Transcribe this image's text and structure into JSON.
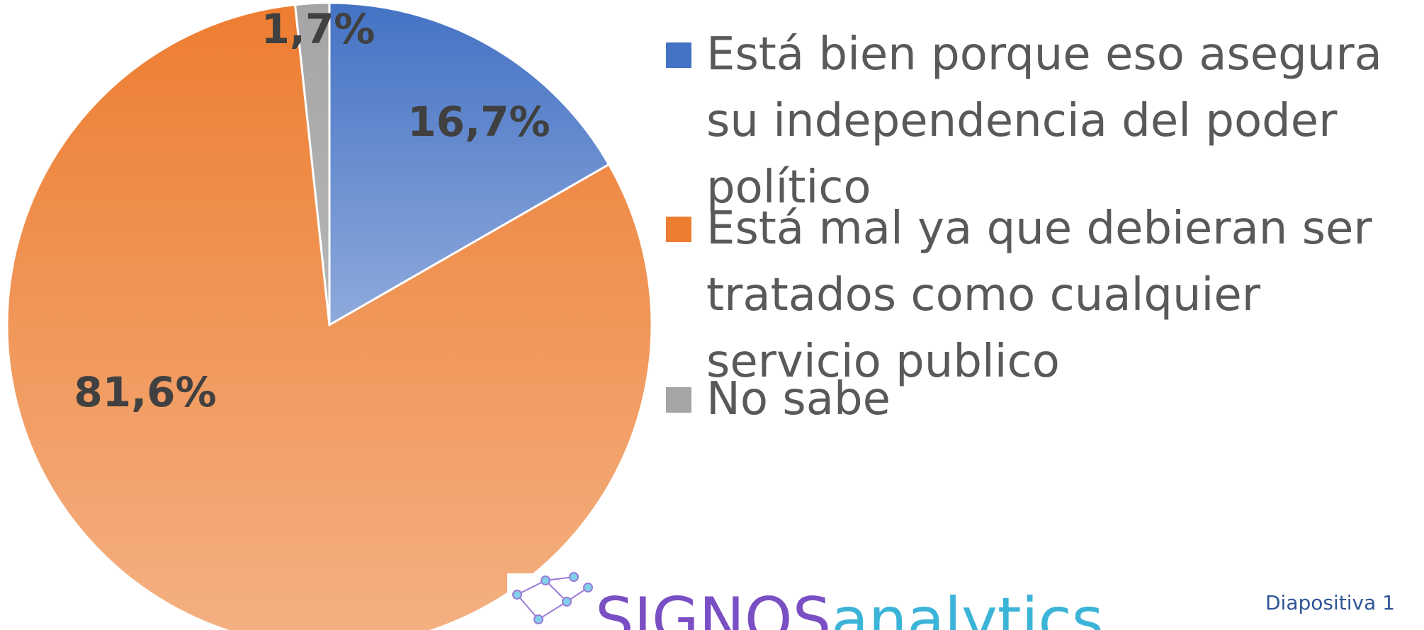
{
  "chart_data": {
    "type": "pie",
    "categories": [
      "Está bien porque eso asegura su independencia del poder político",
      "Está mal ya que debieran ser tratados como cualquier servicio publico",
      "No sabe"
    ],
    "values": [
      16.7,
      81.6,
      1.7
    ],
    "value_labels": [
      "16,7%",
      "81,6%",
      "1,7%"
    ],
    "colors": [
      "#4472c4",
      "#ed7d31",
      "#a5a5a5"
    ],
    "legend": "right"
  },
  "logo": [
    "SIGNOS",
    "analytics"
  ],
  "slide_label": "Diapositiva 1"
}
